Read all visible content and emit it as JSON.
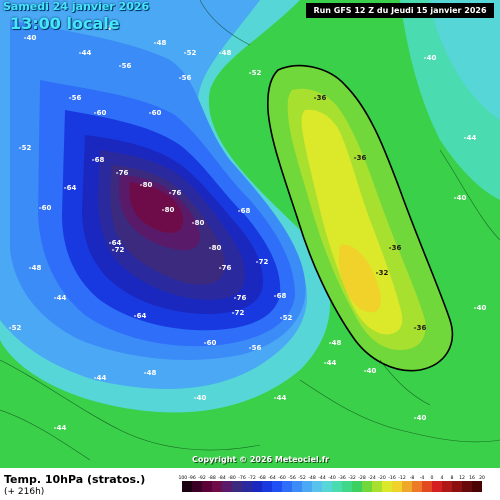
{
  "header": {
    "date": "Samedi 24 janvier 2026",
    "time": "13:00 locale",
    "run": "Run GFS 12 Z du Jeudi 15 janvier 2026"
  },
  "footer": {
    "variable": "Temp. 10hPa (stratos.)",
    "lead": "(+ 216h)",
    "copyright": "Copyright © 2026 Meteociel.fr"
  },
  "legend": {
    "ticks": [
      "-100",
      "-96",
      "-92",
      "-88",
      "-84",
      "-80",
      "-76",
      "-72",
      "-68",
      "-64",
      "-60",
      "-56",
      "-52",
      "-48",
      "-44",
      "-40",
      "-36",
      "-32",
      "-28",
      "-24",
      "-20",
      "-16",
      "-12",
      "-8",
      "-4",
      "0",
      "4",
      "8",
      "12",
      "16",
      "20"
    ],
    "colors": [
      "#1a0010",
      "#3a0026",
      "#5c0038",
      "#6e0c4a",
      "#5a1a6a",
      "#3c2a7e",
      "#2a2a9e",
      "#1a28c0",
      "#1838e0",
      "#2050f4",
      "#2e6ef8",
      "#3c8cf8",
      "#4aa8f4",
      "#58c2ec",
      "#56d6d6",
      "#4adcb0",
      "#3ed888",
      "#3cd060",
      "#70d83a",
      "#a8e030",
      "#dce82a",
      "#f0d22a",
      "#f0a82a",
      "#ec7a26",
      "#e44a22",
      "#d42020",
      "#b01818",
      "#8c1010",
      "#680a0a",
      "#4a0404"
    ]
  },
  "map_labels": [
    {
      "text": "-40",
      "dark": false
    },
    {
      "text": "-44",
      "dark": false
    },
    {
      "text": "-48",
      "dark": false
    },
    {
      "text": "-52",
      "dark": false
    },
    {
      "text": "-56",
      "dark": false
    },
    {
      "text": "-60",
      "dark": false
    },
    {
      "text": "-64",
      "dark": false
    },
    {
      "text": "-68",
      "dark": false
    },
    {
      "text": "-72",
      "dark": false
    },
    {
      "text": "-76",
      "dark": false
    },
    {
      "text": "-80",
      "dark": false
    },
    {
      "text": "-36",
      "dark": true
    },
    {
      "text": "-32",
      "dark": true
    }
  ]
}
